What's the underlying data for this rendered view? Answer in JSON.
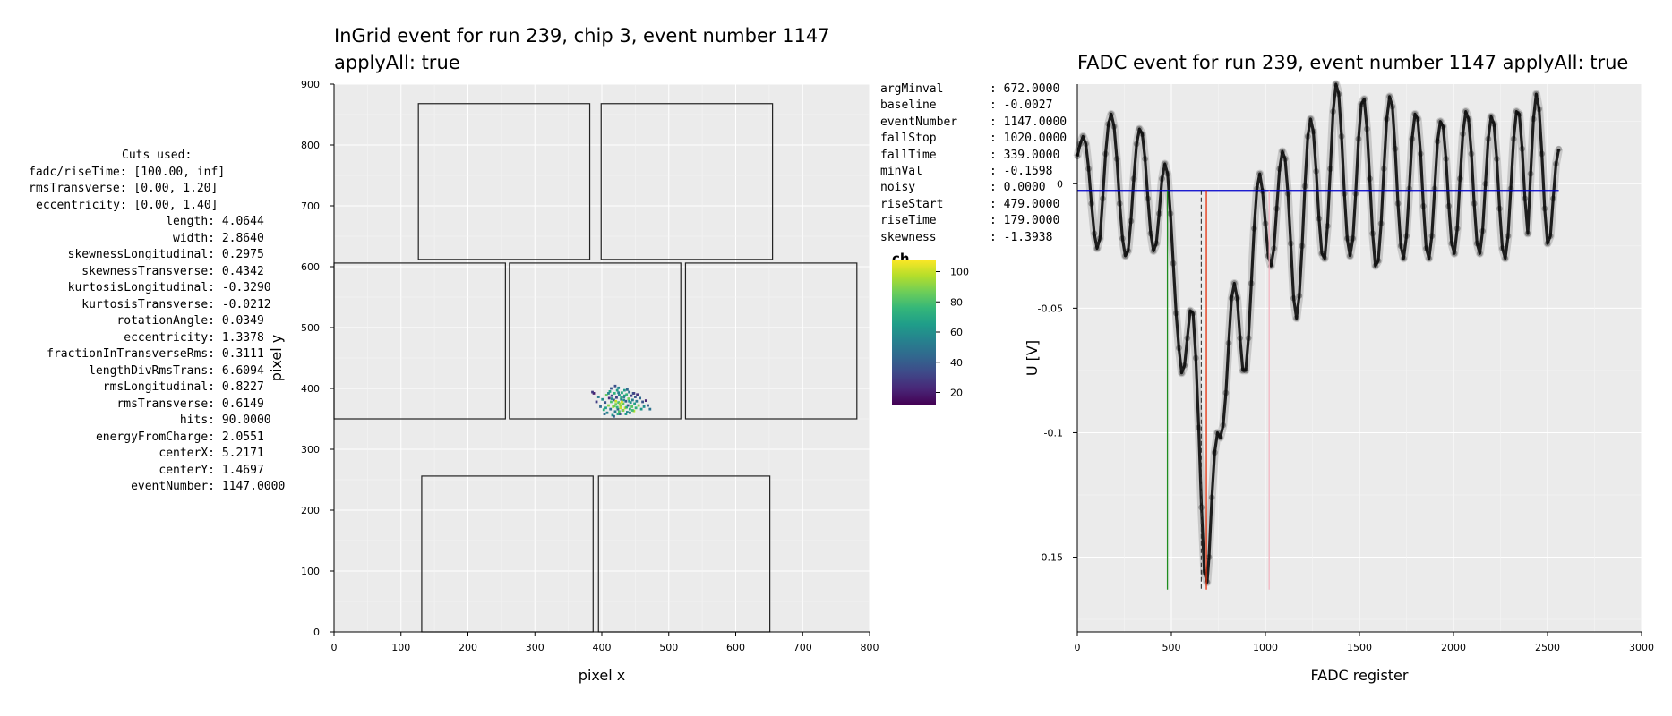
{
  "cuts_panel": {
    "title": "Cuts used:",
    "ranges": [
      {
        "label": "fadc/riseTime",
        "value": "[100.00, inf]"
      },
      {
        "label": "rmsTransverse",
        "value": "[0.00, 1.20]"
      },
      {
        "label": "eccentricity",
        "value": "[0.00, 1.40]"
      }
    ],
    "properties": [
      {
        "label": "length",
        "value": "4.0644"
      },
      {
        "label": "width",
        "value": "2.8640"
      },
      {
        "label": "skewnessLongitudinal",
        "value": "0.2975"
      },
      {
        "label": "skewnessTransverse",
        "value": "0.4342"
      },
      {
        "label": "kurtosisLongitudinal",
        "value": "-0.3290"
      },
      {
        "label": "kurtosisTransverse",
        "value": "-0.0212"
      },
      {
        "label": "rotationAngle",
        "value": "0.0349"
      },
      {
        "label": "eccentricity",
        "value": "1.3378"
      },
      {
        "label": "fractionInTransverseRms",
        "value": "0.3111"
      },
      {
        "label": "lengthDivRmsTrans",
        "value": "6.6094"
      },
      {
        "label": "rmsLongitudinal",
        "value": "0.8227"
      },
      {
        "label": "rmsTransverse",
        "value": "0.6149"
      },
      {
        "label": "hits",
        "value": "90.0000"
      },
      {
        "label": "energyFromCharge",
        "value": "2.0551"
      },
      {
        "label": "centerX",
        "value": "5.2171"
      },
      {
        "label": "centerY",
        "value": "1.4697"
      },
      {
        "label": "eventNumber",
        "value": "1147.0000"
      }
    ]
  },
  "fadc_properties": [
    {
      "label": "argMinval",
      "value": ": 672.0000"
    },
    {
      "label": "baseline",
      "value": ": -0.0027"
    },
    {
      "label": "eventNumber",
      "value": ": 1147.0000"
    },
    {
      "label": "fallStop",
      "value": ": 1020.0000"
    },
    {
      "label": "fallTime",
      "value": ": 339.0000"
    },
    {
      "label": "minVal",
      "value": ": -0.1598"
    },
    {
      "label": "noisy",
      "value": ": 0.0000"
    },
    {
      "label": "riseStart",
      "value": ": 479.0000"
    },
    {
      "label": "riseTime",
      "value": ": 179.0000"
    },
    {
      "label": "skewness",
      "value": ": -1.3938"
    }
  ],
  "colors": {
    "panel_bg": "#EBEBEB",
    "grid": "#FFFFFF",
    "chip_outline": "#222222",
    "baseline_line": "#0000CC",
    "rise_start_line": "#1E8C1E",
    "argmin_line": "#E8300C",
    "fall_stop_line": "#F4B6C2",
    "trace": "#000000"
  },
  "chart_data": [
    {
      "type": "scatter",
      "title_line1": "InGrid event for run 239, chip 3, event number 1147",
      "title_line2": "applyAll: true",
      "xlabel": "pixel x",
      "ylabel": "pixel y",
      "xlim": [
        0,
        800
      ],
      "ylim": [
        0,
        900
      ],
      "xticks": [
        0,
        100,
        200,
        300,
        400,
        500,
        600,
        700,
        800
      ],
      "yticks": [
        0,
        100,
        200,
        300,
        400,
        500,
        600,
        700,
        800,
        900
      ],
      "grid": true,
      "chips": [
        {
          "x0": 126,
          "x1": 382,
          "y0": 612,
          "y1": 868
        },
        {
          "x0": 399,
          "x1": 655,
          "y0": 612,
          "y1": 868
        },
        {
          "x0": 0,
          "x1": 256,
          "y0": 350,
          "y1": 606
        },
        {
          "x0": 262,
          "x1": 518,
          "y0": 350,
          "y1": 606
        },
        {
          "x0": 525,
          "x1": 781,
          "y0": 350,
          "y1": 606
        },
        {
          "x0": 131,
          "x1": 387,
          "y0": 0,
          "y1": 256
        },
        {
          "x0": 395,
          "x1": 651,
          "y0": 0,
          "y1": 256
        }
      ],
      "colorbar": {
        "title": "ch",
        "min": 12,
        "max": 108,
        "ticks": [
          20,
          40,
          60,
          80,
          100
        ],
        "colormap": "viridis"
      },
      "hits": [
        [
          398,
          370,
          45
        ],
        [
          401,
          382,
          60
        ],
        [
          403,
          365,
          72
        ],
        [
          405,
          377,
          38
        ],
        [
          407,
          389,
          85
        ],
        [
          408,
          360,
          55
        ],
        [
          410,
          372,
          90
        ],
        [
          411,
          384,
          25
        ],
        [
          412,
          395,
          68
        ],
        [
          413,
          366,
          47
        ],
        [
          414,
          378,
          80
        ],
        [
          415,
          388,
          33
        ],
        [
          416,
          356,
          62
        ],
        [
          417,
          370,
          95
        ],
        [
          418,
          381,
          40
        ],
        [
          419,
          392,
          74
        ],
        [
          420,
          362,
          52
        ],
        [
          421,
          374,
          88
        ],
        [
          422,
          385,
          30
        ],
        [
          423,
          397,
          66
        ],
        [
          424,
          366,
          44
        ],
        [
          425,
          377,
          78
        ],
        [
          426,
          389,
          58
        ],
        [
          427,
          358,
          36
        ],
        [
          428,
          371,
          92
        ],
        [
          429,
          382,
          50
        ],
        [
          430,
          393,
          70
        ],
        [
          431,
          364,
          28
        ],
        [
          432,
          375,
          84
        ],
        [
          433,
          386,
          46
        ],
        [
          434,
          397,
          64
        ],
        [
          435,
          368,
          98
        ],
        [
          436,
          379,
          40
        ],
        [
          437,
          390,
          76
        ],
        [
          438,
          361,
          56
        ],
        [
          439,
          372,
          34
        ],
        [
          440,
          383,
          86
        ],
        [
          441,
          394,
          48
        ],
        [
          442,
          366,
          72
        ],
        [
          443,
          377,
          60
        ],
        [
          444,
          388,
          30
        ],
        [
          445,
          370,
          82
        ],
        [
          446,
          381,
          54
        ],
        [
          447,
          392,
          42
        ],
        [
          448,
          363,
          96
        ],
        [
          449,
          375,
          66
        ],
        [
          450,
          386,
          38
        ],
        [
          451,
          368,
          74
        ],
        [
          452,
          379,
          52
        ],
        [
          453,
          390,
          26
        ],
        [
          455,
          372,
          88
        ],
        [
          457,
          384,
          44
        ],
        [
          459,
          366,
          62
        ],
        [
          461,
          378,
          36
        ],
        [
          463,
          370,
          58
        ],
        [
          466,
          380,
          22
        ],
        [
          469,
          372,
          40
        ],
        [
          472,
          366,
          48
        ],
        [
          392,
          378,
          30
        ],
        [
          395,
          386,
          52
        ],
        [
          388,
          392,
          20
        ],
        [
          386,
          394,
          28
        ],
        [
          420,
          404,
          35
        ],
        [
          425,
          401,
          55
        ],
        [
          430,
          378,
          105
        ],
        [
          428,
          368,
          100
        ],
        [
          432,
          364,
          90
        ],
        [
          424,
          358,
          70
        ],
        [
          418,
          354,
          42
        ],
        [
          436,
          358,
          64
        ],
        [
          442,
          360,
          50
        ],
        [
          446,
          364,
          78
        ],
        [
          448,
          392,
          30
        ],
        [
          438,
          398,
          44
        ],
        [
          414,
          400,
          38
        ],
        [
          410,
          392,
          56
        ],
        [
          406,
          368,
          66
        ],
        [
          404,
          358,
          46
        ],
        [
          426,
          362,
          82
        ],
        [
          434,
          388,
          68
        ],
        [
          421,
          379,
          100
        ],
        [
          427,
          375,
          94
        ],
        [
          419,
          371,
          86
        ],
        [
          433,
          381,
          60
        ],
        [
          429,
          385,
          72
        ],
        [
          423,
          369,
          76
        ],
        [
          415,
          383,
          58
        ],
        [
          437,
          369,
          70
        ],
        [
          441,
          379,
          64
        ],
        [
          425,
          393,
          54
        ]
      ]
    },
    {
      "type": "line",
      "title": "FADC event for run 239, event number 1147 applyAll: true",
      "xlabel": "FADC register",
      "ylabel": "U [V]",
      "xlim": [
        0,
        3000
      ],
      "ylim": [
        -0.18,
        0.04
      ],
      "xticks": [
        0,
        500,
        1000,
        1500,
        2000,
        2500,
        3000
      ],
      "yticks": [
        0,
        -0.05,
        -0.1,
        -0.15
      ],
      "ytick_labels": [
        "0",
        "-0.05",
        "-0.1",
        "-0.15"
      ],
      "grid": true,
      "baseline": -0.0027,
      "markers": {
        "rise_start": 479,
        "arg_min": 672,
        "dashed": 659,
        "arg_min_right": 686,
        "fall_stop": 1020,
        "bottom": -0.163
      },
      "trace": [
        [
          0,
          0.011
        ],
        [
          15,
          0.016
        ],
        [
          30,
          0.019
        ],
        [
          45,
          0.016
        ],
        [
          60,
          0.006
        ],
        [
          75,
          -0.008
        ],
        [
          90,
          -0.02
        ],
        [
          105,
          -0.026
        ],
        [
          120,
          -0.022
        ],
        [
          135,
          -0.006
        ],
        [
          150,
          0.012
        ],
        [
          165,
          0.024
        ],
        [
          180,
          0.028
        ],
        [
          195,
          0.023
        ],
        [
          210,
          0.01
        ],
        [
          225,
          -0.008
        ],
        [
          240,
          -0.022
        ],
        [
          255,
          -0.029
        ],
        [
          270,
          -0.027
        ],
        [
          285,
          -0.015
        ],
        [
          300,
          0.002
        ],
        [
          315,
          0.016
        ],
        [
          330,
          0.022
        ],
        [
          345,
          0.02
        ],
        [
          360,
          0.01
        ],
        [
          375,
          -0.006
        ],
        [
          390,
          -0.02
        ],
        [
          405,
          -0.027
        ],
        [
          420,
          -0.024
        ],
        [
          435,
          -0.012
        ],
        [
          450,
          0.002
        ],
        [
          465,
          0.008
        ],
        [
          480,
          0.004
        ],
        [
          495,
          -0.012
        ],
        [
          510,
          -0.032
        ],
        [
          525,
          -0.052
        ],
        [
          540,
          -0.066
        ],
        [
          555,
          -0.076
        ],
        [
          570,
          -0.073
        ],
        [
          585,
          -0.062
        ],
        [
          600,
          -0.051
        ],
        [
          615,
          -0.052
        ],
        [
          630,
          -0.07
        ],
        [
          645,
          -0.098
        ],
        [
          660,
          -0.13
        ],
        [
          675,
          -0.156
        ],
        [
          690,
          -0.16
        ],
        [
          700,
          -0.15
        ],
        [
          715,
          -0.126
        ],
        [
          730,
          -0.108
        ],
        [
          745,
          -0.1
        ],
        [
          760,
          -0.102
        ],
        [
          775,
          -0.097
        ],
        [
          790,
          -0.084
        ],
        [
          805,
          -0.064
        ],
        [
          820,
          -0.046
        ],
        [
          835,
          -0.04
        ],
        [
          850,
          -0.046
        ],
        [
          865,
          -0.062
        ],
        [
          880,
          -0.075
        ],
        [
          895,
          -0.075
        ],
        [
          910,
          -0.062
        ],
        [
          925,
          -0.04
        ],
        [
          940,
          -0.018
        ],
        [
          955,
          -0.002
        ],
        [
          970,
          0.004
        ],
        [
          985,
          -0.003
        ],
        [
          1000,
          -0.016
        ],
        [
          1015,
          -0.029
        ],
        [
          1030,
          -0.033
        ],
        [
          1045,
          -0.026
        ],
        [
          1060,
          -0.01
        ],
        [
          1075,
          0.006
        ],
        [
          1090,
          0.013
        ],
        [
          1105,
          0.01
        ],
        [
          1120,
          -0.004
        ],
        [
          1135,
          -0.024
        ],
        [
          1150,
          -0.046
        ],
        [
          1165,
          -0.054
        ],
        [
          1180,
          -0.045
        ],
        [
          1195,
          -0.025
        ],
        [
          1210,
          -0.001
        ],
        [
          1225,
          0.019
        ],
        [
          1240,
          0.026
        ],
        [
          1255,
          0.021
        ],
        [
          1270,
          0.005
        ],
        [
          1285,
          -0.014
        ],
        [
          1300,
          -0.028
        ],
        [
          1315,
          -0.03
        ],
        [
          1330,
          -0.017
        ],
        [
          1345,
          0.006
        ],
        [
          1360,
          0.029
        ],
        [
          1375,
          0.04
        ],
        [
          1390,
          0.036
        ],
        [
          1405,
          0.019
        ],
        [
          1420,
          -0.004
        ],
        [
          1435,
          -0.022
        ],
        [
          1450,
          -0.029
        ],
        [
          1465,
          -0.022
        ],
        [
          1480,
          -0.004
        ],
        [
          1495,
          0.018
        ],
        [
          1510,
          0.032
        ],
        [
          1525,
          0.034
        ],
        [
          1540,
          0.022
        ],
        [
          1555,
          0.002
        ],
        [
          1570,
          -0.02
        ],
        [
          1585,
          -0.033
        ],
        [
          1600,
          -0.031
        ],
        [
          1615,
          -0.016
        ],
        [
          1630,
          0.006
        ],
        [
          1645,
          0.026
        ],
        [
          1660,
          0.035
        ],
        [
          1675,
          0.031
        ],
        [
          1690,
          0.014
        ],
        [
          1705,
          -0.008
        ],
        [
          1720,
          -0.025
        ],
        [
          1735,
          -0.03
        ],
        [
          1750,
          -0.021
        ],
        [
          1765,
          -0.002
        ],
        [
          1780,
          0.018
        ],
        [
          1795,
          0.028
        ],
        [
          1810,
          0.026
        ],
        [
          1825,
          0.012
        ],
        [
          1840,
          -0.009
        ],
        [
          1855,
          -0.026
        ],
        [
          1870,
          -0.03
        ],
        [
          1885,
          -0.021
        ],
        [
          1900,
          -0.002
        ],
        [
          1915,
          0.017
        ],
        [
          1930,
          0.025
        ],
        [
          1945,
          0.023
        ],
        [
          1960,
          0.01
        ],
        [
          1975,
          -0.009
        ],
        [
          1990,
          -0.024
        ],
        [
          2005,
          -0.028
        ],
        [
          2020,
          -0.018
        ],
        [
          2035,
          0.002
        ],
        [
          2050,
          0.02
        ],
        [
          2065,
          0.029
        ],
        [
          2080,
          0.026
        ],
        [
          2095,
          0.012
        ],
        [
          2110,
          -0.008
        ],
        [
          2125,
          -0.024
        ],
        [
          2140,
          -0.028
        ],
        [
          2155,
          -0.019
        ],
        [
          2170,
          0.0
        ],
        [
          2185,
          0.018
        ],
        [
          2200,
          0.027
        ],
        [
          2215,
          0.024
        ],
        [
          2230,
          0.01
        ],
        [
          2245,
          -0.01
        ],
        [
          2260,
          -0.026
        ],
        [
          2275,
          -0.03
        ],
        [
          2290,
          -0.021
        ],
        [
          2305,
          -0.002
        ],
        [
          2320,
          0.018
        ],
        [
          2335,
          0.029
        ],
        [
          2350,
          0.028
        ],
        [
          2365,
          0.014
        ],
        [
          2380,
          -0.006
        ],
        [
          2395,
          -0.02
        ],
        [
          2410,
          0.004
        ],
        [
          2425,
          0.026
        ],
        [
          2440,
          0.036
        ],
        [
          2455,
          0.03
        ],
        [
          2470,
          0.012
        ],
        [
          2485,
          -0.01
        ],
        [
          2500,
          -0.024
        ],
        [
          2515,
          -0.021
        ],
        [
          2530,
          -0.006
        ],
        [
          2545,
          0.008
        ],
        [
          2560,
          0.014
        ]
      ]
    }
  ]
}
